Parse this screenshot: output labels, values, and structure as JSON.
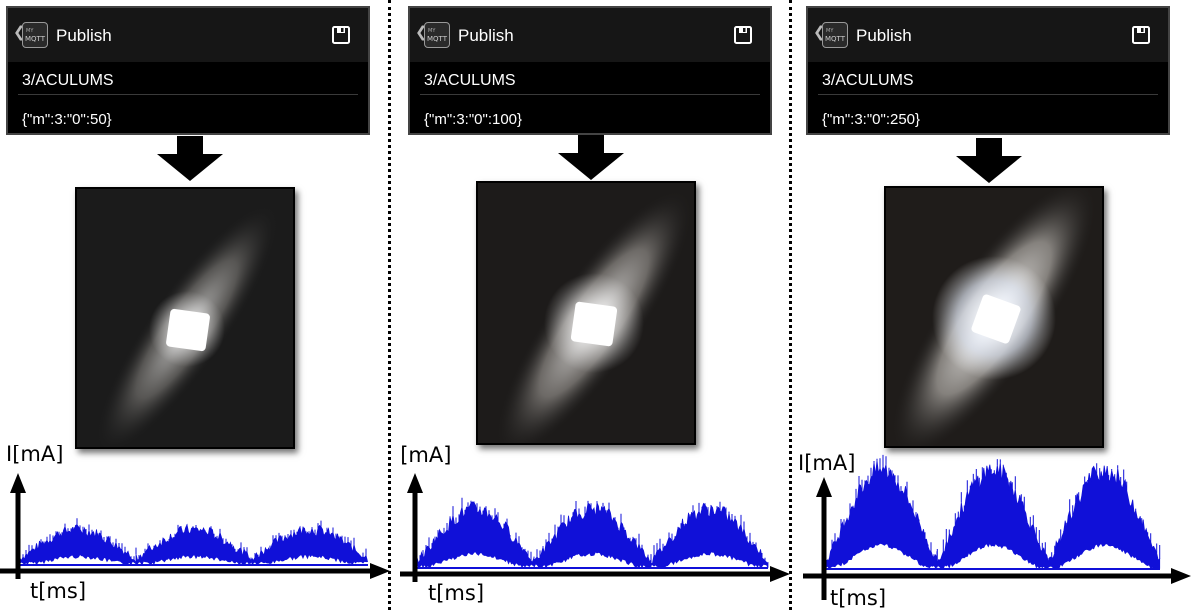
{
  "panels": [
    {
      "app_title": "Publish",
      "topic": "3/ACULUMS",
      "message": "{\"m\":3:\"0\":50}",
      "y_axis_label": "I[mA]",
      "x_axis_label": "t[ms]"
    },
    {
      "app_title": "Publish",
      "topic": "3/ACULUMS",
      "message": "{\"m\":3:\"0\":100}",
      "y_axis_label": "I[mA]",
      "x_axis_label": "t[ms]"
    },
    {
      "app_title": "Publish",
      "topic": "3/ACULUMS",
      "message": "{\"m\":3:\"0\":250}",
      "y_axis_label": "I[mA]",
      "x_axis_label": "t[ms]"
    }
  ],
  "icons": {
    "back": "chevron-left-icon",
    "app_logo": "mymqtt-logo-icon",
    "save": "floppy-disk-icon",
    "arrow": "down-arrow-icon"
  },
  "colors": {
    "signal": "#1010d8",
    "app_background": "#000000",
    "app_bar": "#161616"
  },
  "chart_data": [
    {
      "type": "line",
      "xlabel": "t[ms]",
      "ylabel": "I[mA]",
      "grid": false,
      "series": [
        {
          "arches": 3,
          "amplitude": 0.3
        }
      ]
    },
    {
      "type": "line",
      "xlabel": "t[ms]",
      "ylabel": "I[mA]",
      "grid": false,
      "series": [
        {
          "arches": 3,
          "amplitude": 0.6
        }
      ]
    },
    {
      "type": "line",
      "xlabel": "t[ms]",
      "ylabel": "I[mA]",
      "grid": false,
      "series": [
        {
          "arches": 3,
          "amplitude": 1.0
        }
      ]
    }
  ]
}
